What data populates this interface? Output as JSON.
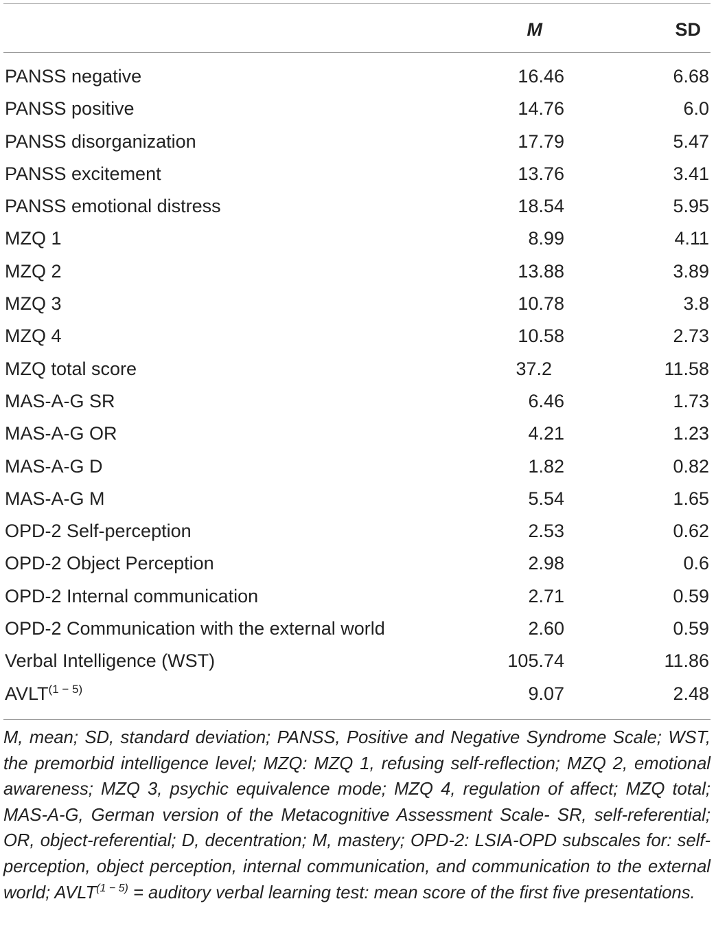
{
  "table": {
    "headers": {
      "label": "",
      "m": "M",
      "sd": "SD"
    },
    "rows": [
      {
        "label": "PANSS negative",
        "m": "16.46",
        "sd": "6.68"
      },
      {
        "label": "PANSS positive",
        "m": "14.76",
        "sd": "6.0"
      },
      {
        "label": "PANSS disorganization",
        "m": "17.79",
        "sd": "5.47"
      },
      {
        "label": "PANSS excitement",
        "m": "13.76",
        "sd": "3.41"
      },
      {
        "label": "PANSS emotional distress",
        "m": "18.54",
        "sd": "5.95"
      },
      {
        "label": "MZQ 1",
        "m": "8.99",
        "sd": "4.11"
      },
      {
        "label": "MZQ 2",
        "m": "13.88",
        "sd": "3.89"
      },
      {
        "label": "MZQ 3",
        "m": "10.78",
        "sd": "3.8"
      },
      {
        "label": "MZQ 4",
        "m": "10.58",
        "sd": "2.73"
      },
      {
        "label": "MZQ total score",
        "m": "37.2",
        "sd": "11.58"
      },
      {
        "label": "MAS-A-G SR",
        "m": "6.46",
        "sd": "1.73"
      },
      {
        "label": "MAS-A-G OR",
        "m": "4.21",
        "sd": "1.23"
      },
      {
        "label": "MAS-A-G D",
        "m": "1.82",
        "sd": "0.82"
      },
      {
        "label": "MAS-A-G M",
        "m": "5.54",
        "sd": "1.65"
      },
      {
        "label": "OPD-2 Self-perception",
        "m": "2.53",
        "sd": "0.62"
      },
      {
        "label": "OPD-2 Object Perception",
        "m": "2.98",
        "sd": "0.6"
      },
      {
        "label": "OPD-2 Internal communication",
        "m": "2.71",
        "sd": "0.59"
      },
      {
        "label": "OPD-2 Communication with the external world",
        "m": "2.60",
        "sd": "0.59"
      },
      {
        "label": "Verbal Intelligence (WST)",
        "m": "105.74",
        "sd": "11.86"
      },
      {
        "label": "AVLT",
        "label_sup": "(1 − 5)",
        "m": "9.07",
        "sd": "2.48"
      }
    ]
  },
  "note": {
    "part1": "M, mean; SD, standard deviation; PANSS, Positive and Negative Syndrome Scale; WST, the premorbid intelligence level; MZQ: MZQ 1, refusing self-reflection; MZQ 2, emotional awareness; MZQ 3, psychic equivalence mode; MZQ 4, regulation of affect; MZQ total; MAS-A-G, German version of the Metacognitive Assessment Scale- SR, self-referential; OR, object-referential; D, decentration; M, mastery; OPD-2: LSIA-OPD subscales for: self-perception, object perception, internal communication, and communication to the external world; AVLT",
    "sup": "(1 − 5)",
    "part2": " = auditory verbal learning test: mean score of the first five presentations."
  }
}
